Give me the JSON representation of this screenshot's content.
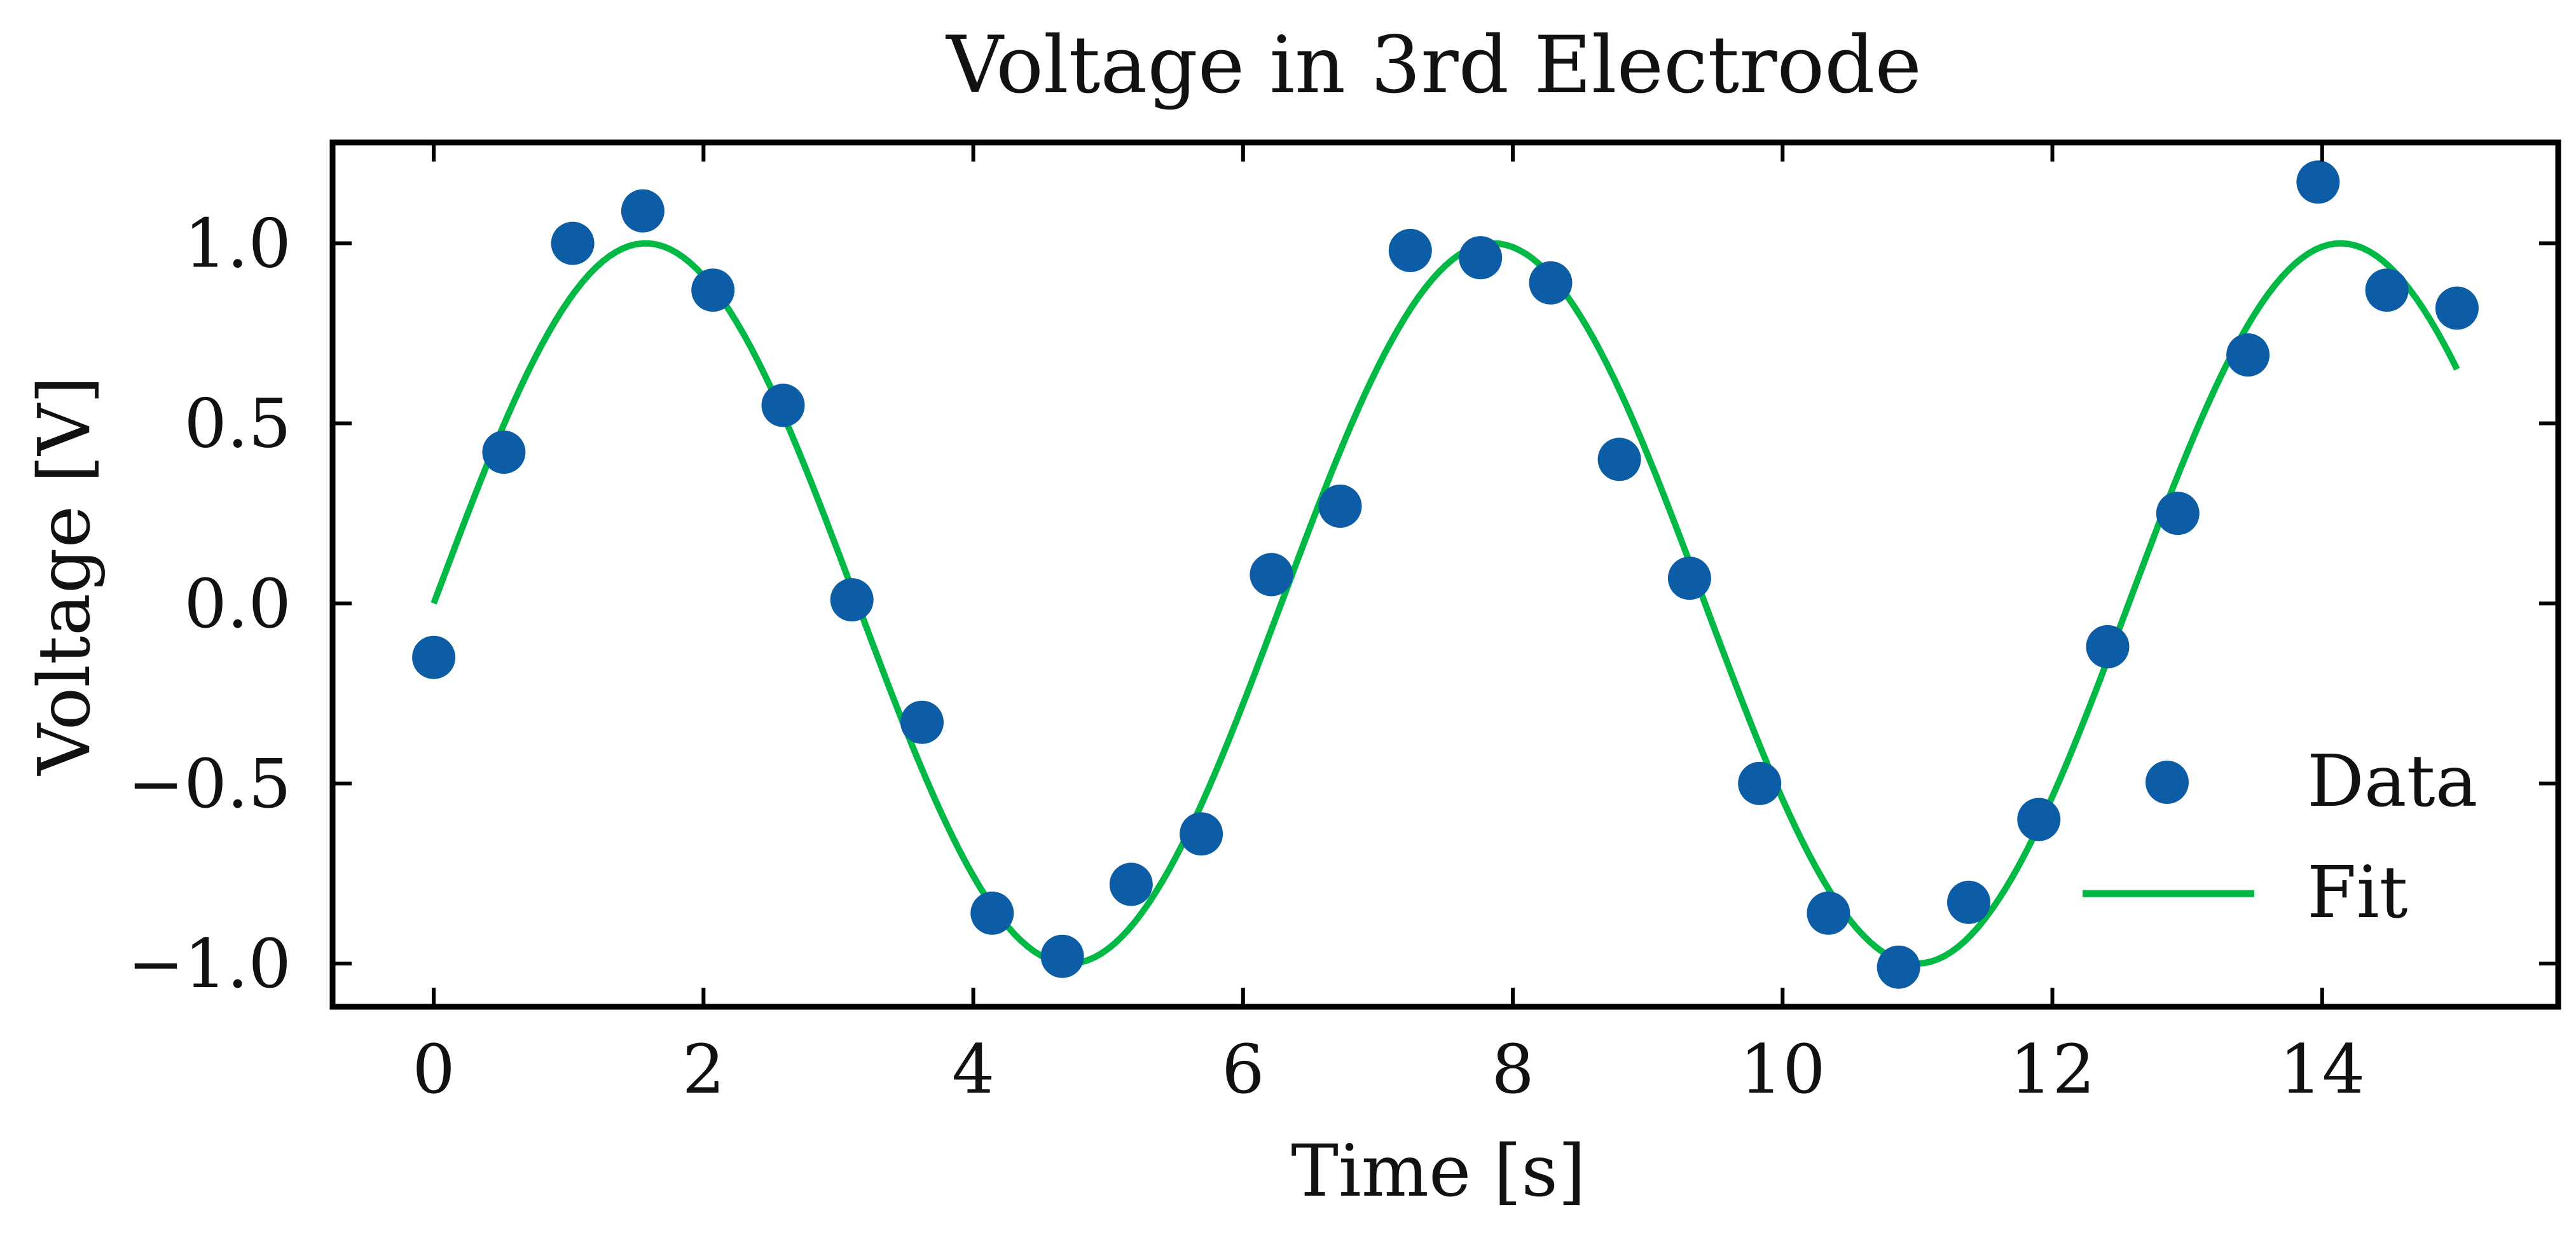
{
  "chart_data": {
    "type": "scatter",
    "title": "Voltage in 3rd Electrode",
    "xlabel": "Time [s]",
    "ylabel": "Voltage [V]",
    "xlim": [
      -0.75,
      15.75
    ],
    "ylim": [
      -1.12,
      1.28
    ],
    "x_ticks": [
      0,
      2,
      4,
      6,
      8,
      10,
      12,
      14
    ],
    "x_tick_labels": [
      "0",
      "2",
      "4",
      "6",
      "8",
      "10",
      "12",
      "14"
    ],
    "y_ticks": [
      -1.0,
      -0.5,
      0.0,
      0.5,
      1.0
    ],
    "y_tick_labels": [
      "−1.0",
      "−0.5",
      "0.0",
      "0.5",
      "1.0"
    ],
    "grid": false,
    "legend_position": "lower-right",
    "series": [
      {
        "name": "Data",
        "kind": "scatter",
        "color": "#0C5DA5",
        "points": [
          [
            0.0,
            -0.15
          ],
          [
            0.52,
            0.42
          ],
          [
            1.03,
            1.0
          ],
          [
            1.55,
            1.09
          ],
          [
            2.07,
            0.87
          ],
          [
            2.59,
            0.55
          ],
          [
            3.1,
            0.01
          ],
          [
            3.62,
            -0.33
          ],
          [
            4.14,
            -0.86
          ],
          [
            4.66,
            -0.98
          ],
          [
            5.17,
            -0.78
          ],
          [
            5.69,
            -0.64
          ],
          [
            6.21,
            0.08
          ],
          [
            6.72,
            0.27
          ],
          [
            7.24,
            0.98
          ],
          [
            7.76,
            0.96
          ],
          [
            8.28,
            0.89
          ],
          [
            8.79,
            0.4
          ],
          [
            9.31,
            0.07
          ],
          [
            9.83,
            -0.5
          ],
          [
            10.34,
            -0.86
          ],
          [
            10.86,
            -1.01
          ],
          [
            11.38,
            -0.83
          ],
          [
            11.9,
            -0.6
          ],
          [
            12.41,
            -0.12
          ],
          [
            12.93,
            0.25
          ],
          [
            13.45,
            0.69
          ],
          [
            13.97,
            1.17
          ],
          [
            14.48,
            0.87
          ],
          [
            15.0,
            0.82
          ]
        ]
      },
      {
        "name": "Fit",
        "kind": "line",
        "color": "#00B945",
        "function": "sin(t)",
        "x_range": [
          0,
          15
        ]
      }
    ]
  }
}
